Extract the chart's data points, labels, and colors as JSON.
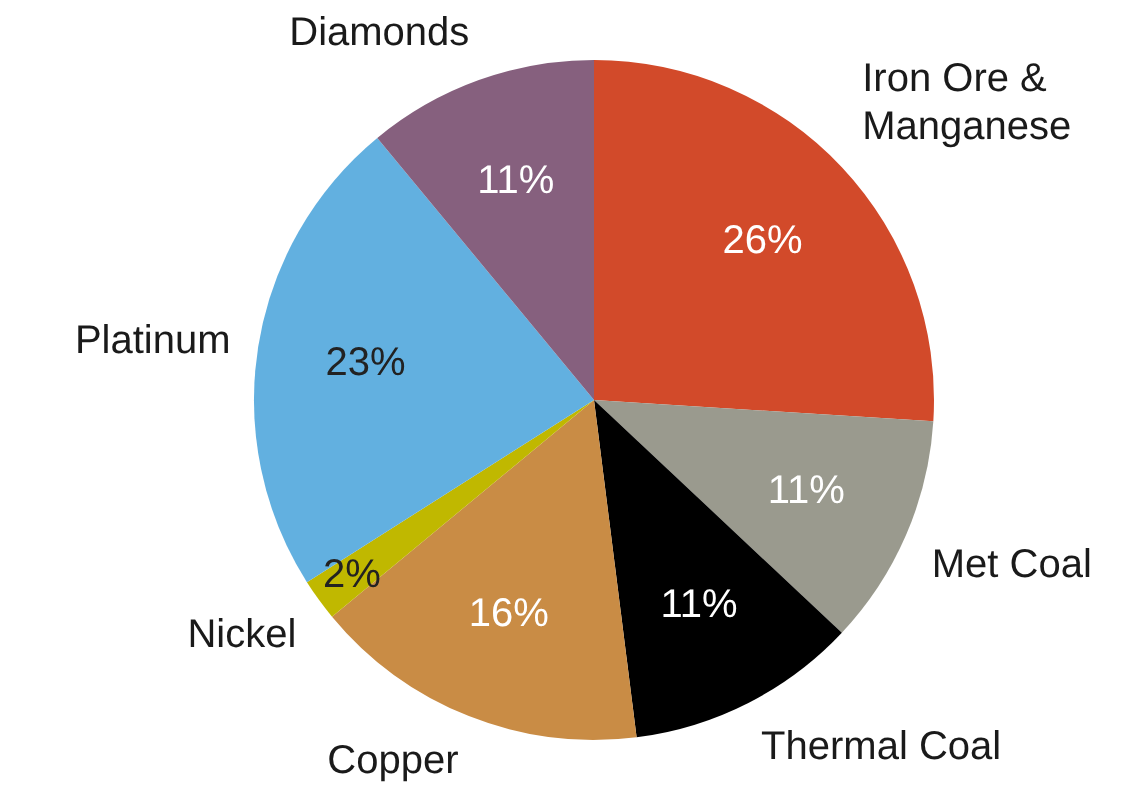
{
  "chart_data": {
    "type": "pie",
    "categories": [
      "Iron Ore & Manganese",
      "Met Coal",
      "Thermal Coal",
      "Copper",
      "Nickel",
      "Platinum",
      "Diamonds"
    ],
    "values": [
      26,
      11,
      11,
      16,
      2,
      23,
      11
    ],
    "value_labels": [
      "26%",
      "11%",
      "11%",
      "16%",
      "2%",
      "23%",
      "11%"
    ],
    "colors": [
      "#d24a2a",
      "#9a9a8e",
      "#000000",
      "#c98c45",
      "#c0b800",
      "#62b0e0",
      "#86607e"
    ],
    "legend": false
  }
}
